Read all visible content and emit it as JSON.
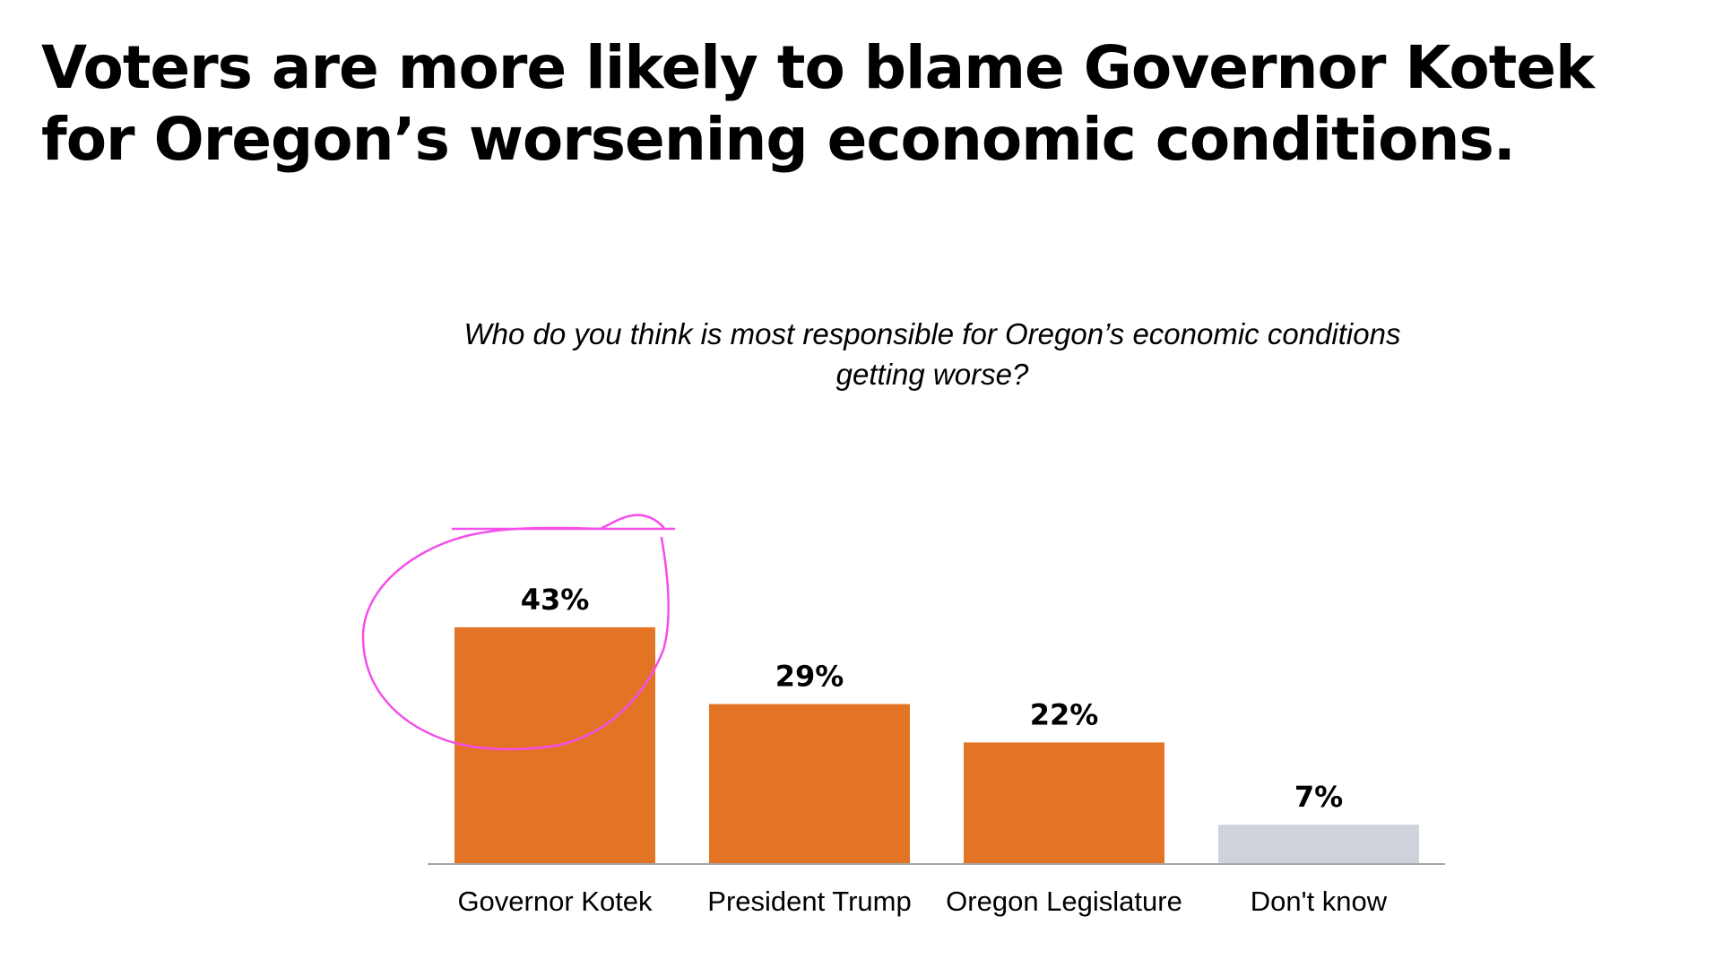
{
  "headline": "Voters are more likely to blame Governor Kotek for Oregon’s worsening economic conditions.",
  "chart_data": {
    "type": "bar",
    "title": "Who do you think is most responsible for Oregon’s economic conditions getting worse?",
    "xlabel": "",
    "ylabel": "",
    "ylim": [
      0,
      100
    ],
    "grid": false,
    "categories": [
      "Governor Kotek",
      "President Trump",
      "Oregon Legislature",
      "Don't know"
    ],
    "values": [
      43,
      29,
      22,
      7
    ],
    "value_labels": [
      "43%",
      "29%",
      "22%",
      "7%"
    ],
    "unit": "%",
    "colors": [
      "#E37425",
      "#E37425",
      "#E37425",
      "#CED2DA"
    ],
    "axis_color": "#A6A6A6",
    "annotation": {
      "type": "hand-drawn circle",
      "target": "Governor Kotek",
      "color": "#F54EEA"
    }
  }
}
